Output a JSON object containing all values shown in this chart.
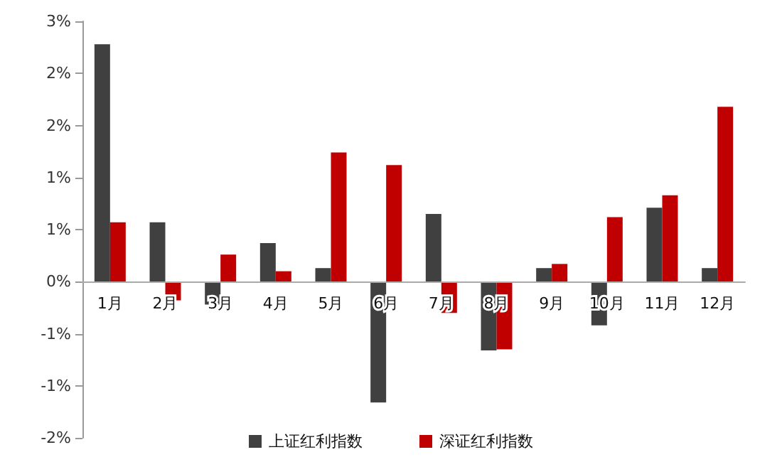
{
  "chart_data": {
    "type": "bar",
    "categories": [
      "1月",
      "2月",
      "3月",
      "4月",
      "5月",
      "6月",
      "7月",
      "8月",
      "9月",
      "10月",
      "11月",
      "12月"
    ],
    "series": [
      {
        "name": "上证红利指数",
        "color": "#404040",
        "values": [
          2.28,
          0.57,
          -0.22,
          0.37,
          0.13,
          -1.16,
          0.65,
          -0.66,
          0.13,
          -0.42,
          0.71,
          0.13
        ]
      },
      {
        "name": "深证红利指数",
        "color": "#c00000",
        "values": [
          0.57,
          -0.18,
          0.26,
          0.1,
          1.24,
          1.12,
          -0.3,
          -0.65,
          0.17,
          0.62,
          0.83,
          1.68
        ]
      }
    ],
    "ylim": [
      -1.5,
      2.5
    ],
    "yticks": [
      {
        "value": -1.5,
        "label": "-2%"
      },
      {
        "value": -1,
        "label": "-1%"
      },
      {
        "value": -0.5,
        "label": "-1%"
      },
      {
        "value": 0,
        "label": "0%"
      },
      {
        "value": 0.5,
        "label": "1%"
      },
      {
        "value": 1,
        "label": "1%"
      },
      {
        "value": 1.5,
        "label": "2%"
      },
      {
        "value": 2,
        "label": "2%"
      },
      {
        "value": 2.5,
        "label": "3%"
      }
    ],
    "legend": "bottom"
  }
}
